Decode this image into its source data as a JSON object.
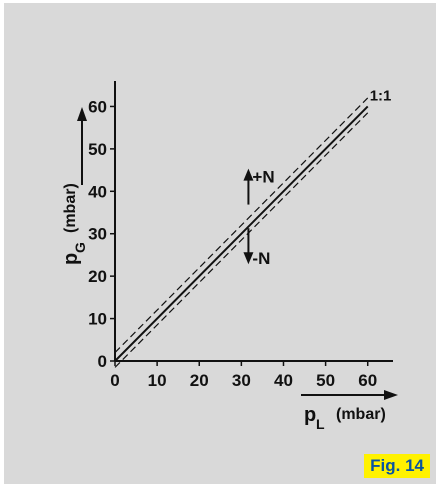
{
  "figure_label": "Fig. 14",
  "chart_data": {
    "type": "line",
    "x_ticks": [
      "0",
      "10",
      "20",
      "30",
      "40",
      "50",
      "60"
    ],
    "y_ticks": [
      "0",
      "10",
      "20",
      "30",
      "40",
      "50",
      "60"
    ],
    "xlim": [
      0,
      66
    ],
    "ylim": [
      0,
      66
    ],
    "xlabel_main": "p",
    "xlabel_sub": "L",
    "xlabel_unit": "(mbar)",
    "ylabel_main": "p",
    "ylabel_sub": "G",
    "ylabel_unit": "(mbar)",
    "series": [
      {
        "name": "1:1",
        "style": "solid",
        "x": [
          0,
          60
        ],
        "y": [
          0,
          60
        ]
      },
      {
        "style": "dashed",
        "x": [
          0,
          60
        ],
        "y": [
          2,
          62
        ]
      },
      {
        "style": "dashed",
        "x": [
          0,
          60
        ],
        "y": [
          -1.5,
          58.5
        ]
      }
    ],
    "annotations": [
      {
        "text": "+N",
        "x": 35,
        "y": 43,
        "arrow": "up"
      },
      {
        "text": "-N",
        "x": 35,
        "y": 28,
        "arrow": "down"
      }
    ],
    "grid": false
  }
}
